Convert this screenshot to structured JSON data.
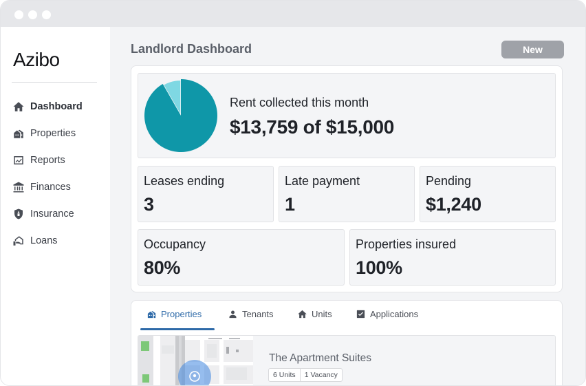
{
  "window": {
    "dots": [
      "",
      "",
      ""
    ]
  },
  "sidebar": {
    "logo": "Azibo",
    "items": [
      {
        "label": "Dashboard",
        "icon": "home-icon",
        "active": true
      },
      {
        "label": "Properties",
        "icon": "properties-icon",
        "active": false
      },
      {
        "label": "Reports",
        "icon": "reports-icon",
        "active": false
      },
      {
        "label": "Finances",
        "icon": "bank-icon",
        "active": false
      },
      {
        "label": "Insurance",
        "icon": "shield-icon",
        "active": false
      },
      {
        "label": "Loans",
        "icon": "loan-icon",
        "active": false
      }
    ]
  },
  "header": {
    "title": "Landlord Dashboard",
    "new_label": "New"
  },
  "rent": {
    "label": "Rent collected this month",
    "value": "$13,759 of $15,000",
    "collected": 13759,
    "total": 15000,
    "colors": {
      "collected": "#0f97a8",
      "remaining": "#7fd8e3"
    }
  },
  "stats": [
    {
      "label": "Leases ending",
      "value": "3"
    },
    {
      "label": "Late payment",
      "value": "1"
    },
    {
      "label": "Pending",
      "value": "$1,240"
    },
    {
      "label": "Occupancy",
      "value": "80%"
    },
    {
      "label": "Properties insured",
      "value": "100%"
    }
  ],
  "tabs": [
    {
      "label": "Properties",
      "icon": "properties-icon",
      "active": true
    },
    {
      "label": "Tenants",
      "icon": "person-icon",
      "active": false
    },
    {
      "label": "Units",
      "icon": "home-icon",
      "active": false
    },
    {
      "label": "Applications",
      "icon": "checkbox-icon",
      "active": false
    }
  ],
  "listing": {
    "title": "The Apartment Suites",
    "units": "6 Units",
    "vacancy": "1 Vacancy",
    "map_icon": "location-pin-icon"
  },
  "colors": {
    "accent": "#2e6aa8",
    "button": "#9fa2a8",
    "teal": "#0f97a8"
  }
}
